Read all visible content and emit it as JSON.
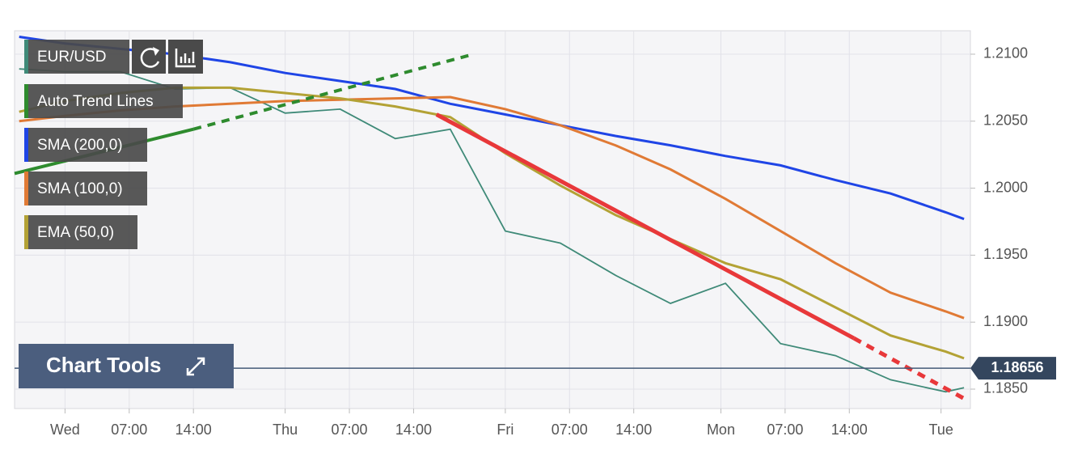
{
  "chart_data": {
    "type": "line",
    "x": [
      -5,
      0,
      6,
      12,
      18,
      24,
      30,
      36,
      42,
      48,
      54,
      60,
      66,
      72,
      78,
      84,
      90,
      96,
      98
    ],
    "xlim": [
      -5.5,
      98.7
    ],
    "xticks": [
      {
        "value": 0,
        "label": "Wed"
      },
      {
        "value": 7,
        "label": "07:00"
      },
      {
        "value": 14,
        "label": "14:00"
      },
      {
        "value": 24,
        "label": "Thu"
      },
      {
        "value": 31,
        "label": "07:00"
      },
      {
        "value": 38,
        "label": "14:00"
      },
      {
        "value": 48,
        "label": "Fri"
      },
      {
        "value": 55,
        "label": "07:00"
      },
      {
        "value": 62,
        "label": "14:00"
      },
      {
        "value": 71.5,
        "label": "Mon"
      },
      {
        "value": 78.5,
        "label": "07:00"
      },
      {
        "value": 85.5,
        "label": "14:00"
      },
      {
        "value": 95.5,
        "label": "Tue"
      }
    ],
    "ylim": [
      1.18355,
      1.21175
    ],
    "yticks": [
      {
        "value": 1.185,
        "label": "1.1850"
      },
      {
        "value": 1.19,
        "label": "1.1900"
      },
      {
        "value": 1.195,
        "label": "1.1950"
      },
      {
        "value": 1.2,
        "label": "1.2000"
      },
      {
        "value": 1.205,
        "label": "1.2050"
      },
      {
        "value": 1.21,
        "label": "1.2100"
      }
    ],
    "grid": true,
    "series": [
      {
        "name": "EUR/USD",
        "color": "#3f8a78",
        "values": [
          1.2089,
          1.2087,
          1.2087,
          1.2074,
          1.2075,
          1.2056,
          1.2059,
          1.2037,
          1.2044,
          1.1968,
          1.1959,
          1.1935,
          1.1914,
          1.1929,
          1.1884,
          1.1875,
          1.1857,
          1.1848,
          1.1851
        ]
      },
      {
        "name": "SMA (200,0)",
        "color": "#1f45e6",
        "values": [
          1.2113,
          1.2108,
          1.2104,
          1.21,
          1.2094,
          1.2086,
          1.208,
          1.2074,
          1.2063,
          1.2055,
          1.2047,
          1.2039,
          1.2032,
          1.2024,
          1.2017,
          1.2006,
          1.1996,
          1.1982,
          1.1977
        ]
      },
      {
        "name": "SMA (100,0)",
        "color": "#e07a35",
        "values": [
          1.205,
          1.2054,
          1.2058,
          1.2061,
          1.2063,
          1.2065,
          1.2066,
          1.2067,
          1.2068,
          1.2059,
          1.2047,
          1.2032,
          1.2014,
          1.1992,
          1.1968,
          1.1944,
          1.1922,
          1.1908,
          1.1903
        ]
      },
      {
        "name": "EMA (50,0)",
        "color": "#b3a235",
        "values": [
          1.2057,
          1.2065,
          1.2071,
          1.2075,
          1.2075,
          1.2071,
          1.2067,
          1.2061,
          1.2053,
          1.2026,
          1.2002,
          1.198,
          1.1962,
          1.1944,
          1.1932,
          1.1911,
          1.189,
          1.1878,
          1.1873
        ]
      }
    ],
    "trend_lines": {
      "name": "Auto Trend Lines",
      "color": "#2e8b2e",
      "lines": [
        {
          "color": "#2e8b2e",
          "dashed": false,
          "x": [
            -5.5,
            14
          ],
          "values": [
            1.2011,
            1.2044
          ]
        },
        {
          "color": "#2e8b2e",
          "dashed": true,
          "x": [
            14,
            44
          ],
          "values": [
            1.2044,
            1.2099
          ]
        },
        {
          "color": "#e8383a",
          "dashed": false,
          "x": [
            40.5,
            86
          ],
          "values": [
            1.2055,
            1.1888
          ]
        },
        {
          "color": "#e8383a",
          "dashed": true,
          "x": [
            86,
            98
          ],
          "values": [
            1.1888,
            1.1843
          ]
        }
      ]
    },
    "last_price": 1.18656,
    "tools_label": "Chart Tools"
  }
}
